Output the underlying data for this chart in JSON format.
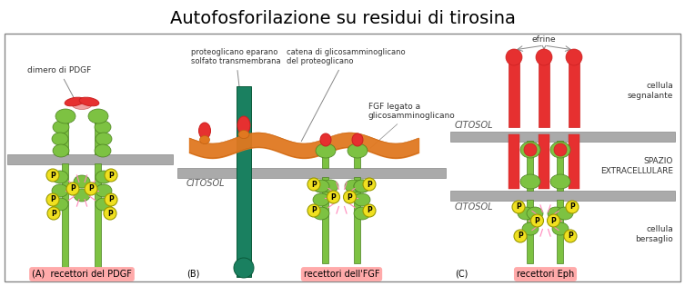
{
  "title": "Autofosforilazione su residui di tirosina",
  "title_fontsize": 14,
  "bg_color": "#ffffff",
  "border_color": "#888888",
  "green_receptor": "#7dc242",
  "green_edge": "#4a8020",
  "red_ligand": "#e63030",
  "red_dark": "#cc2020",
  "orange_ligand": "#e07820",
  "orange_dark": "#c06010",
  "pink_bg": "#ffaaaa",
  "yellow_p": "#f0e020",
  "teal_receptor": "#1a8060",
  "membrane_color": "#aaaaaa",
  "membrane_edge": "#888888",
  "label_A": "(A)  recettori del PDGF",
  "label_B": "(B)",
  "label_FGF": "recettori dell'FGF",
  "label_C": "(C)",
  "label_Eph": "recettori Eph",
  "ann_dimero": "dimero di PDGF",
  "ann_prot1": "proteoglicano eparano",
  "ann_prot2": "solfato transmembrana",
  "ann_catena1": "catena di glicosamminoglicano",
  "ann_catena2": "del proteoglicano",
  "ann_fgf1": "FGF legato a",
  "ann_fgf2": "glicosamminoglicano",
  "ann_efrine": "efrine",
  "ann_citosol": "CITOSOL",
  "ann_spazio": "SPAZIO\nEXTRACELLULARE",
  "ann_segnalante": "cellula\nsegnalante",
  "ann_bersaglio": "cellula\nbersaglio"
}
